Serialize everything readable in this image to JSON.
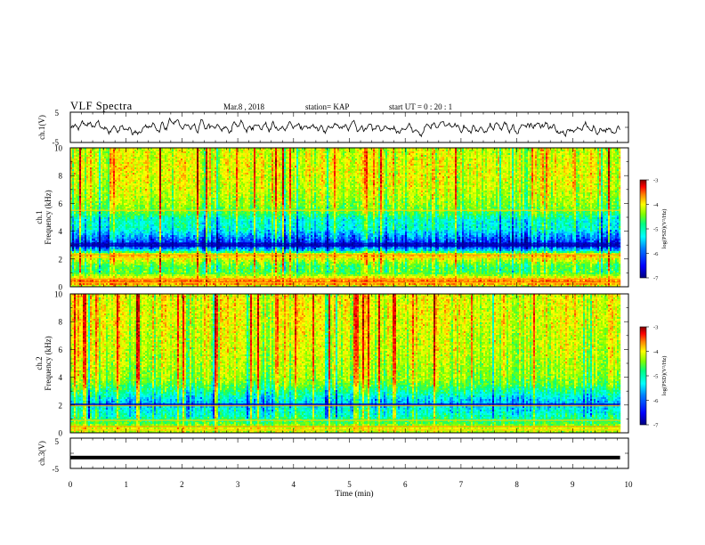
{
  "header": {
    "title": "VLF Spectra",
    "date": "Mar.8 , 2018",
    "station": "station= KAP",
    "start": "start UT = 0 : 20 : 1"
  },
  "chart_data": [
    {
      "type": "line",
      "panel": "waveform-ch1",
      "ylabel": "ch.1(V)",
      "ylim": [
        -5,
        5
      ],
      "yticks": [
        "5",
        "0",
        "-5"
      ],
      "xlim": [
        0,
        10
      ],
      "x_end": 9.85,
      "trace_color": "#000000",
      "amplitude_envelope": [
        2.6,
        3.2
      ],
      "mean_level": 0.0
    },
    {
      "type": "heatmap",
      "panel": "spectrogram-ch1",
      "ylabel_line1": "ch.1",
      "ylabel_line2": "Frequency (kHz)",
      "ylim": [
        0,
        10
      ],
      "yticks": [
        "0",
        "2",
        "4",
        "6",
        "8",
        "10"
      ],
      "xlim": [
        0,
        10
      ],
      "x_end": 9.85,
      "colorbar": {
        "label": "log(PSD)(V²/Hz)",
        "range": [
          -7,
          -3
        ],
        "ticks": [
          "-3",
          "-4",
          "-5",
          "-6",
          "-7"
        ]
      },
      "frequency_profile_khz": [
        [
          0.0,
          -4.6
        ],
        [
          0.3,
          -3.6
        ],
        [
          0.6,
          -4.2
        ],
        [
          1.0,
          -5.0
        ],
        [
          1.5,
          -5.0
        ],
        [
          2.0,
          -4.4
        ],
        [
          2.3,
          -4.1
        ],
        [
          2.6,
          -5.7
        ],
        [
          3.0,
          -6.7
        ],
        [
          3.3,
          -6.3
        ],
        [
          3.8,
          -5.9
        ],
        [
          4.2,
          -5.5
        ],
        [
          4.8,
          -5.5
        ],
        [
          5.2,
          -5.1
        ],
        [
          5.5,
          -4.9
        ],
        [
          6.0,
          -4.7
        ],
        [
          7.0,
          -4.5
        ],
        [
          8.0,
          -4.4
        ],
        [
          9.0,
          -4.4
        ],
        [
          10.0,
          -4.5
        ]
      ],
      "bright_lines_khz": [
        0.3,
        0.55,
        2.1,
        2.3,
        5.5
      ],
      "dark_lines_khz": [
        2.95,
        3.1
      ]
    },
    {
      "type": "heatmap",
      "panel": "spectrogram-ch2",
      "ylabel_line1": "ch.2",
      "ylabel_line2": "Frequency (kHz)",
      "ylim": [
        0,
        10
      ],
      "yticks": [
        "0",
        "2",
        "4",
        "6",
        "8",
        "10"
      ],
      "xlim": [
        0,
        10
      ],
      "x_end": 9.85,
      "colorbar": {
        "label": "log(PSD)(V²/Hz)",
        "range": [
          -7,
          -3
        ],
        "ticks": [
          "-3",
          "-4",
          "-5",
          "-6",
          "-7"
        ]
      },
      "frequency_profile_khz": [
        [
          0.0,
          -4.7
        ],
        [
          0.3,
          -4.4
        ],
        [
          0.7,
          -5.0
        ],
        [
          1.2,
          -5.4
        ],
        [
          1.7,
          -5.6
        ],
        [
          2.0,
          -5.9
        ],
        [
          2.3,
          -5.8
        ],
        [
          2.7,
          -5.5
        ],
        [
          3.1,
          -5.2
        ],
        [
          3.5,
          -4.9
        ],
        [
          4.0,
          -4.7
        ],
        [
          5.0,
          -4.6
        ],
        [
          6.0,
          -4.5
        ],
        [
          7.0,
          -4.5
        ],
        [
          8.0,
          -4.4
        ],
        [
          9.0,
          -4.4
        ],
        [
          10.0,
          -4.4
        ]
      ],
      "bright_lines_khz": [
        0.2,
        0.45,
        0.9,
        1.95
      ],
      "dark_lines_khz": [
        2.05
      ]
    },
    {
      "type": "line",
      "panel": "waveform-ch3",
      "ylabel": "ch.3(V)",
      "ylim": [
        -5,
        5
      ],
      "yticks": [
        "5",
        "0",
        "-5"
      ],
      "xlim": [
        0,
        10
      ],
      "x_end": 9.85,
      "constant_value": -1.4,
      "trace_color": "#000000"
    }
  ],
  "x_axis": {
    "label": "Time (min)",
    "ticks": [
      "0",
      "1",
      "2",
      "3",
      "4",
      "5",
      "6",
      "7",
      "8",
      "9",
      "10"
    ]
  },
  "colormap": [
    "#00007f",
    "#0000ff",
    "#0080ff",
    "#00ffff",
    "#00ff80",
    "#80ff00",
    "#ffff00",
    "#ff8000",
    "#ff0000",
    "#7f0000"
  ]
}
